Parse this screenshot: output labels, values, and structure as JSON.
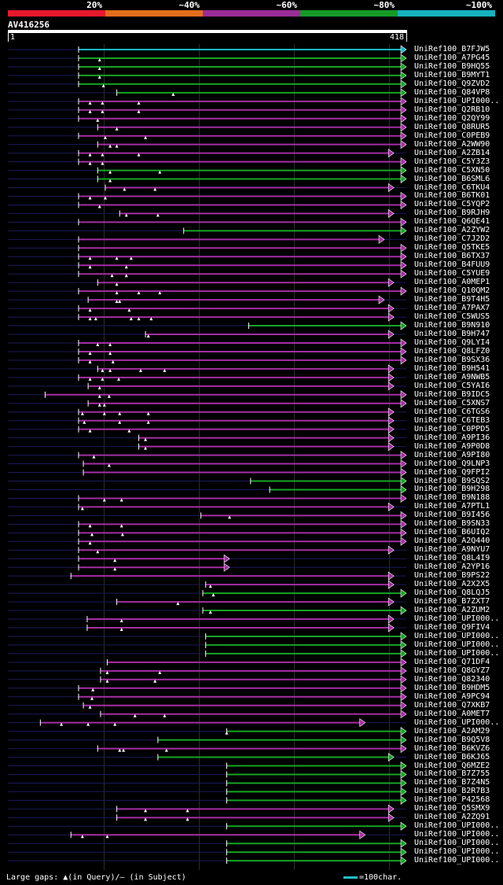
{
  "legend": {
    "segments": [
      {
        "label": "20%",
        "color": "#e8192c"
      },
      {
        "label": "~40%",
        "color": "#e26d1c"
      },
      {
        "label": "~60%",
        "color": "#9b2c98"
      },
      {
        "label": "~80%",
        "color": "#169a26"
      },
      {
        "label": "~100%",
        "color": "#16b2bd"
      }
    ]
  },
  "query": {
    "name": "AV416256",
    "start": "1",
    "end": "418"
  },
  "colors": {
    "background": "#000000",
    "magenta": "#a52ea3",
    "green": "#16a524",
    "cyan": "#16b8c4",
    "thin_line": "#1a1a5a"
  },
  "hits": [
    {
      "id": "UniRef100_B7FJW5",
      "start": 75,
      "end": 418,
      "color": "cyan",
      "gaps": []
    },
    {
      "id": "UniRef100_A7PG45",
      "start": 75,
      "end": 418,
      "color": "green",
      "gaps": [
        97
      ]
    },
    {
      "id": "UniRef100_B9HQ55",
      "start": 75,
      "end": 418,
      "color": "green",
      "gaps": [
        97
      ]
    },
    {
      "id": "UniRef100_B9MYT1",
      "start": 75,
      "end": 418,
      "color": "green",
      "gaps": [
        97
      ]
    },
    {
      "id": "UniRef100_Q9ZVD2",
      "start": 75,
      "end": 418,
      "color": "green",
      "gaps": [
        101
      ]
    },
    {
      "id": "UniRef100_Q84VP8",
      "start": 115,
      "end": 418,
      "color": "green",
      "gaps": [
        174
      ]
    },
    {
      "id": "UniRef100_UPI000..",
      "start": 75,
      "end": 418,
      "color": "magenta",
      "gaps": [
        87,
        100,
        138
      ]
    },
    {
      "id": "UniRef100_Q2RB10",
      "start": 75,
      "end": 418,
      "color": "magenta",
      "gaps": [
        87,
        100,
        138
      ]
    },
    {
      "id": "UniRef100_Q2QY99",
      "start": 75,
      "end": 418,
      "color": "magenta",
      "gaps": [
        95
      ]
    },
    {
      "id": "UniRef100_Q8RUR5",
      "start": 95,
      "end": 418,
      "color": "magenta",
      "gaps": [
        115
      ]
    },
    {
      "id": "UniRef100_C0PEB9",
      "start": 75,
      "end": 418,
      "color": "magenta",
      "gaps": [
        103,
        145
      ]
    },
    {
      "id": "UniRef100_A2WW90",
      "start": 95,
      "end": 418,
      "color": "magenta",
      "gaps": [
        108,
        115
      ]
    },
    {
      "id": "UniRef100_A2ZB14",
      "start": 75,
      "end": 405,
      "color": "magenta",
      "gaps": [
        87,
        100,
        138
      ]
    },
    {
      "id": "UniRef100_C5Y3Z3",
      "start": 75,
      "end": 418,
      "color": "magenta",
      "gaps": [
        87,
        100
      ]
    },
    {
      "id": "UniRef100_C5XN50",
      "start": 95,
      "end": 418,
      "color": "green",
      "gaps": [
        108,
        160
      ]
    },
    {
      "id": "UniRef100_B6SML6",
      "start": 95,
      "end": 418,
      "color": "green",
      "gaps": [
        108
      ]
    },
    {
      "id": "UniRef100_C6TKU4",
      "start": 103,
      "end": 405,
      "color": "magenta",
      "gaps": [
        123,
        155
      ]
    },
    {
      "id": "UniRef100_B6TK01",
      "start": 75,
      "end": 418,
      "color": "magenta",
      "gaps": [
        87,
        103
      ]
    },
    {
      "id": "UniRef100_C5YQP2",
      "start": 75,
      "end": 418,
      "color": "magenta",
      "gaps": [
        97
      ]
    },
    {
      "id": "UniRef100_B9RJH9",
      "start": 118,
      "end": 405,
      "color": "magenta",
      "gaps": [
        125,
        158
      ]
    },
    {
      "id": "UniRef100_Q6QE41",
      "start": 75,
      "end": 418,
      "color": "magenta",
      "gaps": []
    },
    {
      "id": "UniRef100_A2ZYW2",
      "start": 185,
      "end": 418,
      "color": "green",
      "gaps": []
    },
    {
      "id": "UniRef100_C7J2D2",
      "start": 75,
      "end": 395,
      "color": "magenta",
      "gaps": []
    },
    {
      "id": "UniRef100_Q5TKE5",
      "start": 75,
      "end": 418,
      "color": "magenta",
      "gaps": []
    },
    {
      "id": "UniRef100_B6TX37",
      "start": 75,
      "end": 418,
      "color": "magenta",
      "gaps": [
        87,
        115,
        130
      ]
    },
    {
      "id": "UniRef100_B4FUU9",
      "start": 75,
      "end": 418,
      "color": "magenta",
      "gaps": [
        87,
        125
      ]
    },
    {
      "id": "UniRef100_C5YUE9",
      "start": 75,
      "end": 418,
      "color": "magenta",
      "gaps": [
        110,
        125
      ]
    },
    {
      "id": "UniRef100_A0MEP1",
      "start": 95,
      "end": 405,
      "color": "magenta",
      "gaps": [
        115
      ]
    },
    {
      "id": "UniRef100_Q10QM2",
      "start": 75,
      "end": 418,
      "color": "magenta",
      "gaps": [
        115,
        138,
        160
      ]
    },
    {
      "id": "UniRef100_B9T4H5",
      "start": 85,
      "end": 395,
      "color": "magenta",
      "gaps": [
        115,
        118
      ]
    },
    {
      "id": "UniRef100_A7PAX7",
      "start": 75,
      "end": 405,
      "color": "magenta",
      "gaps": [
        87,
        128
      ]
    },
    {
      "id": "UniRef100_C5WUS5",
      "start": 75,
      "end": 405,
      "color": "magenta",
      "gaps": [
        87,
        93,
        130,
        138,
        151
      ]
    },
    {
      "id": "UniRef100_B9N910",
      "start": 253,
      "end": 418,
      "color": "green",
      "gaps": []
    },
    {
      "id": "UniRef100_B9H747",
      "start": 145,
      "end": 405,
      "color": "magenta",
      "gaps": [
        148
      ]
    },
    {
      "id": "UniRef100_Q9LYI4",
      "start": 75,
      "end": 418,
      "color": "magenta",
      "gaps": [
        95,
        108
      ]
    },
    {
      "id": "UniRef100_Q8LFZ0",
      "start": 75,
      "end": 418,
      "color": "magenta",
      "gaps": [
        87,
        108
      ]
    },
    {
      "id": "UniRef100_B9SX36",
      "start": 75,
      "end": 418,
      "color": "magenta",
      "gaps": [
        87,
        111
      ]
    },
    {
      "id": "UniRef100_B9H541",
      "start": 95,
      "end": 405,
      "color": "magenta",
      "gaps": [
        100,
        108,
        140,
        165
      ]
    },
    {
      "id": "UniRef100_A9NWB5",
      "start": 75,
      "end": 405,
      "color": "magenta",
      "gaps": [
        87,
        100,
        117
      ]
    },
    {
      "id": "UniRef100_C5YAI6",
      "start": 85,
      "end": 405,
      "color": "magenta",
      "gaps": [
        97
      ]
    },
    {
      "id": "UniRef100_B9IDC5",
      "start": 40,
      "end": 418,
      "color": "magenta",
      "gaps": [
        97,
        107
      ]
    },
    {
      "id": "UniRef100_C5XNS7",
      "start": 85,
      "end": 418,
      "color": "magenta",
      "gaps": [
        97,
        102
      ]
    },
    {
      "id": "UniRef100_C6TGS6",
      "start": 75,
      "end": 405,
      "color": "magenta",
      "gaps": [
        79,
        102,
        118,
        148
      ]
    },
    {
      "id": "UniRef100_C6TEB3",
      "start": 75,
      "end": 405,
      "color": "magenta",
      "gaps": [
        81,
        118,
        148
      ]
    },
    {
      "id": "UniRef100_C0PPD5",
      "start": 75,
      "end": 405,
      "color": "magenta",
      "gaps": [
        87,
        128
      ]
    },
    {
      "id": "UniRef100_A9PI36",
      "start": 138,
      "end": 405,
      "color": "magenta",
      "gaps": [
        145
      ]
    },
    {
      "id": "UniRef100_A9P0D8",
      "start": 138,
      "end": 405,
      "color": "magenta",
      "gaps": [
        145
      ]
    },
    {
      "id": "UniRef100_A9PI80",
      "start": 75,
      "end": 418,
      "color": "magenta",
      "gaps": [
        91
      ]
    },
    {
      "id": "UniRef100_Q9LNP3",
      "start": 80,
      "end": 418,
      "color": "magenta",
      "gaps": [
        107
      ]
    },
    {
      "id": "UniRef100_Q9FPI2",
      "start": 80,
      "end": 418,
      "color": "magenta",
      "gaps": []
    },
    {
      "id": "UniRef100_B9SQS2",
      "start": 255,
      "end": 418,
      "color": "green",
      "gaps": []
    },
    {
      "id": "UniRef100_B9H298",
      "start": 275,
      "end": 418,
      "color": "green",
      "gaps": []
    },
    {
      "id": "UniRef100_B9N188",
      "start": 75,
      "end": 418,
      "color": "magenta",
      "gaps": [
        102,
        120
      ]
    },
    {
      "id": "UniRef100_A7PTL1",
      "start": 75,
      "end": 405,
      "color": "magenta",
      "gaps": [
        79
      ]
    },
    {
      "id": "UniRef100_B9I456",
      "start": 203,
      "end": 418,
      "color": "magenta",
      "gaps": [
        233
      ]
    },
    {
      "id": "UniRef100_B9SN33",
      "start": 75,
      "end": 418,
      "color": "magenta",
      "gaps": [
        87,
        120
      ]
    },
    {
      "id": "UniRef100_B6UIQ2",
      "start": 75,
      "end": 418,
      "color": "magenta",
      "gaps": [
        89,
        121
      ]
    },
    {
      "id": "UniRef100_A2Q440",
      "start": 75,
      "end": 418,
      "color": "magenta",
      "gaps": [
        87
      ]
    },
    {
      "id": "UniRef100_A9NYU7",
      "start": 75,
      "end": 405,
      "color": "magenta",
      "gaps": [
        95
      ]
    },
    {
      "id": "UniRef100_Q8L4I9",
      "start": 75,
      "end": 233,
      "color": "magenta",
      "gaps": [
        113
      ]
    },
    {
      "id": "UniRef100_A2YP16",
      "start": 75,
      "end": 233,
      "color": "magenta",
      "gaps": [
        113
      ]
    },
    {
      "id": "UniRef100_B9PS22",
      "start": 67,
      "end": 405,
      "color": "magenta",
      "gaps": []
    },
    {
      "id": "UniRef100_A2X2X5",
      "start": 208,
      "end": 405,
      "color": "magenta",
      "gaps": [
        213
      ]
    },
    {
      "id": "UniRef100_Q8LQJ5",
      "start": 205,
      "end": 418,
      "color": "green",
      "gaps": [
        216
      ]
    },
    {
      "id": "UniRef100_B7ZXT7",
      "start": 115,
      "end": 405,
      "color": "magenta",
      "gaps": [
        179
      ]
    },
    {
      "id": "UniRef100_A2ZUM2",
      "start": 205,
      "end": 418,
      "color": "green",
      "gaps": [
        213
      ]
    },
    {
      "id": "UniRef100_UPI000..",
      "start": 84,
      "end": 405,
      "color": "magenta",
      "gaps": [
        120
      ]
    },
    {
      "id": "UniRef100_Q9FIV4",
      "start": 84,
      "end": 405,
      "color": "magenta",
      "gaps": [
        120
      ]
    },
    {
      "id": "UniRef100_UPI000..",
      "start": 208,
      "end": 418,
      "color": "green",
      "gaps": []
    },
    {
      "id": "UniRef100_UPI000..",
      "start": 208,
      "end": 418,
      "color": "green",
      "gaps": []
    },
    {
      "id": "UniRef100_UPI000..",
      "start": 208,
      "end": 418,
      "color": "green",
      "gaps": []
    },
    {
      "id": "UniRef100_Q71DF4",
      "start": 105,
      "end": 418,
      "color": "magenta",
      "gaps": []
    },
    {
      "id": "UniRef100_Q8GYZ7",
      "start": 98,
      "end": 418,
      "color": "magenta",
      "gaps": [
        105,
        160
      ]
    },
    {
      "id": "UniRef100_Q82340",
      "start": 98,
      "end": 418,
      "color": "magenta",
      "gaps": [
        105,
        155
      ]
    },
    {
      "id": "UniRef100_B9HDM5",
      "start": 75,
      "end": 418,
      "color": "magenta",
      "gaps": [
        90
      ]
    },
    {
      "id": "UniRef100_A9PC94",
      "start": 75,
      "end": 418,
      "color": "magenta",
      "gaps": [
        89
      ]
    },
    {
      "id": "UniRef100_Q7XKB7",
      "start": 80,
      "end": 418,
      "color": "magenta",
      "gaps": [
        87
      ]
    },
    {
      "id": "UniRef100_A0MET7",
      "start": 98,
      "end": 418,
      "color": "magenta",
      "gaps": [
        134,
        165
      ]
    },
    {
      "id": "UniRef100_UPI000..",
      "start": 35,
      "end": 375,
      "color": "magenta",
      "gaps": [
        57,
        85,
        113
      ]
    },
    {
      "id": "UniRef100_A2AM29",
      "start": 230,
      "end": 418,
      "color": "green",
      "gaps": [
        230
      ]
    },
    {
      "id": "UniRef100_B9Q5V8",
      "start": 158,
      "end": 418,
      "color": "green",
      "gaps": []
    },
    {
      "id": "UniRef100_B6KVZ6",
      "start": 95,
      "end": 418,
      "color": "magenta",
      "gaps": [
        118,
        122,
        167
      ]
    },
    {
      "id": "UniRef100_B6KJ65",
      "start": 158,
      "end": 405,
      "color": "green",
      "gaps": []
    },
    {
      "id": "UniRef100_Q6MZE2",
      "start": 230,
      "end": 418,
      "color": "green",
      "gaps": []
    },
    {
      "id": "UniRef100_B7Z755",
      "start": 230,
      "end": 418,
      "color": "green",
      "gaps": []
    },
    {
      "id": "UniRef100_B7Z4N5",
      "start": 230,
      "end": 418,
      "color": "green",
      "gaps": []
    },
    {
      "id": "UniRef100_B2R7B3",
      "start": 230,
      "end": 418,
      "color": "green",
      "gaps": []
    },
    {
      "id": "UniRef100_P42568",
      "start": 230,
      "end": 418,
      "color": "green",
      "gaps": []
    },
    {
      "id": "UniRef100_Q5SMX9",
      "start": 115,
      "end": 405,
      "color": "magenta",
      "gaps": [
        145,
        189
      ]
    },
    {
      "id": "UniRef100_A2ZQ91",
      "start": 115,
      "end": 405,
      "color": "magenta",
      "gaps": [
        145,
        189
      ]
    },
    {
      "id": "UniRef100_UPI000..",
      "start": 230,
      "end": 418,
      "color": "green",
      "gaps": []
    },
    {
      "id": "UniRef100_UPI000..",
      "start": 67,
      "end": 375,
      "color": "magenta",
      "gaps": [
        79,
        105
      ]
    },
    {
      "id": "UniRef100_UPI000..",
      "start": 230,
      "end": 418,
      "color": "green",
      "gaps": []
    },
    {
      "id": "UniRef100_UPI000..",
      "start": 230,
      "end": 418,
      "color": "green",
      "gaps": []
    },
    {
      "id": "UniRef100_UPI000..",
      "start": 230,
      "end": 418,
      "color": "green",
      "gaps": []
    }
  ],
  "footer": {
    "gaps_label": "Large gaps: ▲(in Query)/– (in Subject)",
    "scale_label": "=100char."
  }
}
